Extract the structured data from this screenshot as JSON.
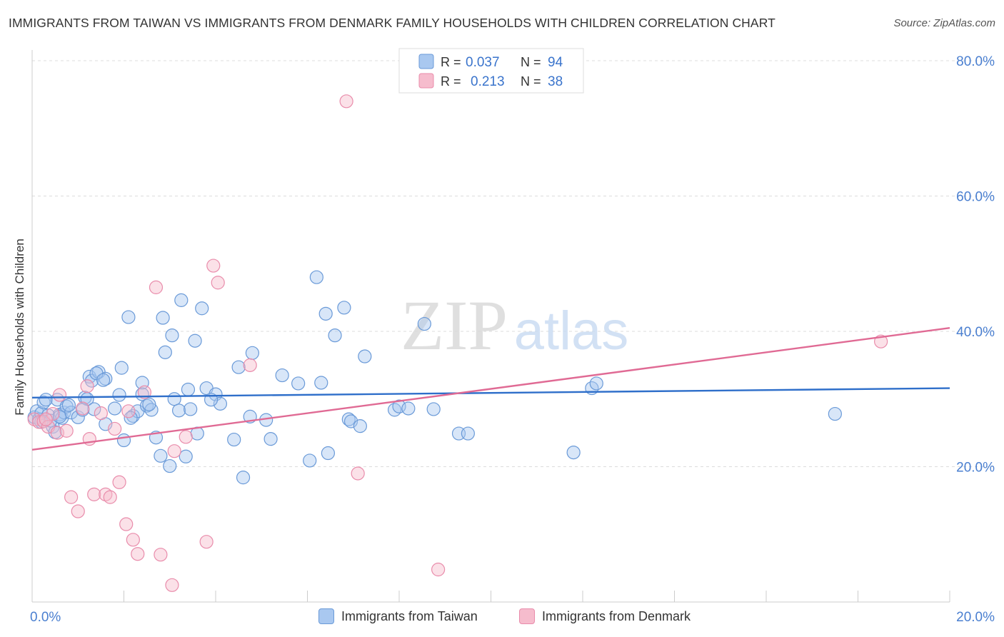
{
  "header": {
    "title": "IMMIGRANTS FROM TAIWAN VS IMMIGRANTS FROM DENMARK FAMILY HOUSEHOLDS WITH CHILDREN CORRELATION CHART",
    "source": "Source: ZipAtlas.com"
  },
  "watermark": {
    "zip": "ZIP",
    "atlas": "atlas"
  },
  "legend": {
    "r_label": "R =",
    "n_label": "N =",
    "entries": [
      {
        "r": "0.037",
        "n": "94"
      },
      {
        "r": "0.213",
        "n": "38"
      }
    ]
  },
  "colors": {
    "taiwan_fill": "#a9c8f0",
    "taiwan_stroke": "#6a9ad8",
    "taiwan_line": "#2f6fca",
    "denmark_fill": "#f6bccd",
    "denmark_stroke": "#e98cab",
    "denmark_line": "#e06a94",
    "tick_label": "#4a7fd0"
  },
  "chart_data": {
    "type": "scatter",
    "title": "IMMIGRANTS FROM TAIWAN VS IMMIGRANTS FROM DENMARK FAMILY HOUSEHOLDS WITH CHILDREN CORRELATION CHART",
    "xlabel": "",
    "ylabel": "Family Households with Children",
    "xlim": [
      0,
      20
    ],
    "ylim": [
      0,
      82
    ],
    "x_tick_labels": [
      {
        "value": 0,
        "label": "0.0%"
      },
      {
        "value": 20,
        "label": "20.0%"
      }
    ],
    "y_tick_labels": [
      {
        "value": 20,
        "label": "20.0%"
      },
      {
        "value": 40,
        "label": "40.0%"
      },
      {
        "value": 60,
        "label": "60.0%"
      },
      {
        "value": 80,
        "label": "80.0%"
      }
    ],
    "grid": "horizontal dashed",
    "legend_position": "top-center",
    "series": [
      {
        "name": "Immigrants from Taiwan",
        "color": "#a9c8f0",
        "trend": {
          "x": [
            0,
            20
          ],
          "y": [
            30.2,
            31.6
          ]
        },
        "points": [
          [
            0.05,
            27.3
          ],
          [
            0.1,
            28.2
          ],
          [
            0.15,
            27.0
          ],
          [
            0.2,
            27.9
          ],
          [
            0.25,
            29.5
          ],
          [
            0.3,
            29.9
          ],
          [
            0.35,
            27.6
          ],
          [
            0.45,
            25.9
          ],
          [
            0.5,
            25.1
          ],
          [
            0.55,
            29.9
          ],
          [
            0.6,
            27.7
          ],
          [
            0.65,
            27.2
          ],
          [
            0.7,
            28.0
          ],
          [
            0.75,
            28.9
          ],
          [
            0.85,
            28.0
          ],
          [
            1.0,
            27.3
          ],
          [
            1.15,
            30.2
          ],
          [
            1.2,
            30.0
          ],
          [
            1.25,
            33.3
          ],
          [
            1.3,
            32.7
          ],
          [
            1.35,
            28.5
          ],
          [
            1.45,
            34.0
          ],
          [
            1.6,
            33.0
          ],
          [
            1.6,
            26.3
          ],
          [
            1.8,
            28.6
          ],
          [
            1.9,
            30.6
          ],
          [
            2.0,
            23.9
          ],
          [
            2.1,
            42.1
          ],
          [
            2.2,
            27.5
          ],
          [
            2.3,
            28.2
          ],
          [
            2.4,
            32.4
          ],
          [
            2.4,
            30.7
          ],
          [
            2.5,
            29.0
          ],
          [
            2.6,
            28.4
          ],
          [
            2.7,
            24.3
          ],
          [
            2.8,
            21.6
          ],
          [
            2.85,
            42.0
          ],
          [
            2.9,
            36.9
          ],
          [
            3.0,
            20.1
          ],
          [
            3.05,
            39.4
          ],
          [
            3.1,
            30.0
          ],
          [
            3.2,
            28.3
          ],
          [
            3.25,
            44.6
          ],
          [
            3.35,
            21.5
          ],
          [
            3.4,
            31.4
          ],
          [
            3.45,
            28.5
          ],
          [
            3.55,
            38.6
          ],
          [
            3.6,
            24.9
          ],
          [
            3.7,
            43.4
          ],
          [
            3.8,
            31.6
          ],
          [
            4.0,
            30.7
          ],
          [
            4.1,
            29.3
          ],
          [
            4.4,
            24.0
          ],
          [
            4.5,
            34.7
          ],
          [
            4.6,
            18.4
          ],
          [
            4.75,
            27.4
          ],
          [
            4.8,
            36.8
          ],
          [
            5.1,
            26.9
          ],
          [
            5.2,
            24.1
          ],
          [
            5.45,
            33.5
          ],
          [
            5.8,
            32.3
          ],
          [
            6.05,
            20.9
          ],
          [
            6.2,
            48.0
          ],
          [
            6.3,
            32.4
          ],
          [
            6.4,
            42.6
          ],
          [
            6.45,
            22.0
          ],
          [
            6.6,
            39.4
          ],
          [
            6.8,
            43.5
          ],
          [
            6.9,
            27.0
          ],
          [
            6.95,
            26.7
          ],
          [
            7.15,
            26.0
          ],
          [
            7.25,
            36.3
          ],
          [
            7.9,
            28.4
          ],
          [
            8.0,
            28.9
          ],
          [
            8.2,
            28.6
          ],
          [
            8.55,
            41.1
          ],
          [
            8.75,
            28.5
          ],
          [
            9.3,
            24.9
          ],
          [
            9.5,
            24.9
          ],
          [
            11.8,
            22.1
          ],
          [
            12.2,
            31.6
          ],
          [
            12.3,
            32.3
          ],
          [
            17.5,
            27.8
          ],
          [
            0.2,
            26.6
          ],
          [
            0.4,
            26.8
          ],
          [
            0.6,
            27.4
          ],
          [
            0.8,
            29.1
          ],
          [
            1.1,
            28.4
          ],
          [
            1.4,
            33.8
          ],
          [
            1.55,
            32.8
          ],
          [
            1.95,
            34.6
          ],
          [
            2.15,
            27.2
          ],
          [
            2.55,
            29.2
          ],
          [
            3.9,
            29.9
          ]
        ]
      },
      {
        "name": "Immigrants from Denmark",
        "color": "#f6bccd",
        "trend": {
          "x": [
            0,
            20
          ],
          "y": [
            22.5,
            40.5
          ]
        },
        "points": [
          [
            0.05,
            27.0
          ],
          [
            0.15,
            26.6
          ],
          [
            0.25,
            26.7
          ],
          [
            0.35,
            25.9
          ],
          [
            0.45,
            27.8
          ],
          [
            0.55,
            25.0
          ],
          [
            0.6,
            30.6
          ],
          [
            0.75,
            25.3
          ],
          [
            0.85,
            15.5
          ],
          [
            1.0,
            13.4
          ],
          [
            1.1,
            28.6
          ],
          [
            1.2,
            31.9
          ],
          [
            1.25,
            24.1
          ],
          [
            1.35,
            15.9
          ],
          [
            1.5,
            27.9
          ],
          [
            1.6,
            15.9
          ],
          [
            1.7,
            15.5
          ],
          [
            1.8,
            25.6
          ],
          [
            1.9,
            17.7
          ],
          [
            2.05,
            11.5
          ],
          [
            2.1,
            28.2
          ],
          [
            2.2,
            9.2
          ],
          [
            2.3,
            7.1
          ],
          [
            2.45,
            31.0
          ],
          [
            2.7,
            46.5
          ],
          [
            2.8,
            7.0
          ],
          [
            3.05,
            2.5
          ],
          [
            3.1,
            22.3
          ],
          [
            3.35,
            24.4
          ],
          [
            3.8,
            8.9
          ],
          [
            3.95,
            49.7
          ],
          [
            4.05,
            47.2
          ],
          [
            4.75,
            35.0
          ],
          [
            6.85,
            74.0
          ],
          [
            7.1,
            19.0
          ],
          [
            8.85,
            4.8
          ],
          [
            18.5,
            38.5
          ],
          [
            0.3,
            27.0
          ]
        ]
      }
    ]
  },
  "bottom_legend": [
    {
      "label": "Immigrants from Taiwan"
    },
    {
      "label": "Immigrants from Denmark"
    }
  ]
}
